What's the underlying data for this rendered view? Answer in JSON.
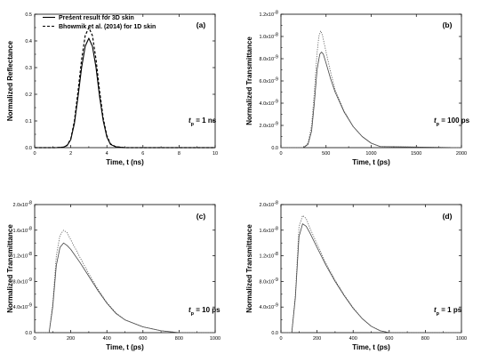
{
  "chart_data": [
    {
      "type": "line",
      "panel_label": "(a)",
      "ylabel": "Normalized Reflectance",
      "xlabel": "Time, t (ns)",
      "xlim": [
        0,
        10
      ],
      "ylim": [
        0,
        0.5
      ],
      "xticks": [
        0,
        2,
        4,
        6,
        8,
        10
      ],
      "xtick_labels": [
        "0",
        "2",
        "4",
        "6",
        "8",
        "10"
      ],
      "yticks": [
        0,
        0.1,
        0.2,
        0.3,
        0.4,
        0.5
      ],
      "ytick_labels": [
        "0.0",
        "0.1",
        "0.2",
        "0.3",
        "0.4",
        "0.5"
      ],
      "pulse_label_main": "t",
      "pulse_label_sub": "p",
      "pulse_label_rest": " = 1 ns",
      "legend": {
        "placement": "top-left",
        "entries": [
          "Present result for 3D skin",
          "Bhowmik et al. (2014)  for 1D skin"
        ]
      },
      "series": [
        {
          "name": "Present result for 3D skin",
          "style": "solid",
          "x": [
            0,
            1.2,
            1.6,
            1.8,
            2.0,
            2.2,
            2.4,
            2.6,
            2.8,
            3.0,
            3.2,
            3.4,
            3.6,
            3.8,
            4.0,
            4.2,
            4.5,
            5.0,
            10
          ],
          "y": [
            0,
            0,
            0.002,
            0.008,
            0.03,
            0.09,
            0.19,
            0.3,
            0.38,
            0.41,
            0.38,
            0.3,
            0.19,
            0.1,
            0.04,
            0.012,
            0.003,
            0,
            0
          ]
        },
        {
          "name": "Bhowmik et al. (2014)  for 1D skin",
          "style": "dashed",
          "x": [
            0,
            1.2,
            1.6,
            1.8,
            2.0,
            2.2,
            2.4,
            2.6,
            2.8,
            3.0,
            3.2,
            3.4,
            3.6,
            3.8,
            4.0,
            4.2,
            4.5,
            5.0,
            10
          ],
          "y": [
            0,
            0,
            0.002,
            0.009,
            0.033,
            0.1,
            0.21,
            0.33,
            0.42,
            0.45,
            0.42,
            0.33,
            0.21,
            0.11,
            0.045,
            0.014,
            0.003,
            0,
            0
          ]
        }
      ]
    },
    {
      "type": "line",
      "panel_label": "(b)",
      "ylabel": "Normalized Transmittance",
      "xlabel": "Time, t (ps)",
      "xlim": [
        0,
        2000
      ],
      "ylim": [
        0,
        1.2
      ],
      "xticks": [
        0,
        500,
        1000,
        1500,
        2000
      ],
      "xtick_labels": [
        "0",
        "500",
        "1000",
        "1500",
        "2000"
      ],
      "yticks": [
        0,
        0.2,
        0.4,
        0.6,
        0.8,
        1.0,
        1.2
      ],
      "ytick_labels": [
        "0.0",
        "2.0x10",
        "4.0x10",
        "6.0x10",
        "8.0x10",
        "1.0x10",
        "1.2x10"
      ],
      "ytick_exp": [
        "",
        "-9",
        "-9",
        "-9",
        "-9",
        "-8",
        "-8"
      ],
      "pulse_label_main": "t",
      "pulse_label_sub": "p",
      "pulse_label_rest": " = 100 ps",
      "series": [
        {
          "name": "",
          "style": "solid",
          "x": [
            0,
            250,
            300,
            340,
            370,
            400,
            430,
            450,
            470,
            500,
            550,
            600,
            700,
            800,
            900,
            1000,
            1100,
            2000
          ],
          "y": [
            0,
            0,
            0.03,
            0.15,
            0.4,
            0.7,
            0.84,
            0.86,
            0.84,
            0.76,
            0.62,
            0.5,
            0.32,
            0.19,
            0.1,
            0.04,
            0.01,
            0
          ]
        },
        {
          "name": "",
          "style": "dotted",
          "x": [
            0,
            250,
            300,
            340,
            370,
            400,
            420,
            440,
            460,
            500,
            550,
            600,
            700,
            800,
            900,
            1000,
            1100,
            2000
          ],
          "y": [
            0,
            0,
            0.04,
            0.2,
            0.5,
            0.85,
            1.0,
            1.05,
            1.01,
            0.86,
            0.68,
            0.52,
            0.33,
            0.19,
            0.1,
            0.04,
            0.01,
            0
          ]
        }
      ]
    },
    {
      "type": "line",
      "panel_label": "(c)",
      "ylabel": "Normalized Transmittance",
      "xlabel": "Time, t (ps)",
      "xlim": [
        0,
        1000
      ],
      "ylim": [
        0,
        2.0
      ],
      "xticks": [
        0,
        200,
        400,
        600,
        800,
        1000
      ],
      "xtick_labels": [
        "0",
        "200",
        "400",
        "600",
        "800",
        "1000"
      ],
      "yticks": [
        0,
        0.4,
        0.8,
        1.2,
        1.6,
        2.0
      ],
      "ytick_labels": [
        "0.0",
        "4.0x10",
        "8.0x10",
        "1.2x10",
        "1.6x10",
        "2.0x10"
      ],
      "ytick_exp": [
        "",
        "-9",
        "-9",
        "-8",
        "-8",
        "-8"
      ],
      "pulse_label_main": "t",
      "pulse_label_sub": "p",
      "pulse_label_rest": " = 10 ps",
      "series": [
        {
          "name": "",
          "style": "solid",
          "x": [
            0,
            80,
            100,
            120,
            140,
            160,
            180,
            200,
            250,
            300,
            350,
            400,
            450,
            500,
            600,
            700,
            800,
            1000
          ],
          "y": [
            0,
            0,
            0.4,
            1.05,
            1.33,
            1.4,
            1.36,
            1.3,
            1.1,
            0.88,
            0.66,
            0.46,
            0.3,
            0.2,
            0.09,
            0.03,
            0,
            0
          ]
        },
        {
          "name": "",
          "style": "dotted",
          "x": [
            0,
            80,
            100,
            120,
            140,
            160,
            180,
            200,
            250,
            300,
            350,
            400,
            450,
            500,
            600,
            700,
            800,
            1000
          ],
          "y": [
            0,
            0,
            0.45,
            1.2,
            1.52,
            1.6,
            1.56,
            1.45,
            1.18,
            0.92,
            0.68,
            0.47,
            0.31,
            0.2,
            0.09,
            0.03,
            0,
            0
          ]
        }
      ]
    },
    {
      "type": "line",
      "panel_label": "(d)",
      "ylabel": "Normalized Transmittance",
      "xlabel": "Time, t (ps)",
      "xlim": [
        0,
        1000
      ],
      "ylim": [
        0,
        2.0
      ],
      "xticks": [
        0,
        200,
        400,
        600,
        800,
        1000
      ],
      "xtick_labels": [
        "0",
        "200",
        "400",
        "600",
        "800",
        "1000"
      ],
      "yticks": [
        0,
        0.4,
        0.8,
        1.2,
        1.6,
        2.0
      ],
      "ytick_labels": [
        "0.0",
        "4.0x10",
        "8.0x10",
        "1.2x10",
        "1.6x10",
        "2.0x10"
      ],
      "ytick_exp": [
        "",
        "-9",
        "-9",
        "-8",
        "-8",
        "-8"
      ],
      "pulse_label_main": "t",
      "pulse_label_sub": "p",
      "pulse_label_rest": " = 1 ps",
      "series": [
        {
          "name": "",
          "style": "solid",
          "x": [
            0,
            60,
            80,
            100,
            120,
            140,
            160,
            200,
            250,
            300,
            350,
            400,
            450,
            500,
            550,
            600,
            1000
          ],
          "y": [
            0,
            0,
            0.55,
            1.5,
            1.7,
            1.66,
            1.56,
            1.33,
            1.05,
            0.8,
            0.58,
            0.38,
            0.22,
            0.1,
            0.03,
            0,
            0
          ]
        },
        {
          "name": "",
          "style": "dotted",
          "x": [
            0,
            60,
            80,
            100,
            120,
            140,
            160,
            200,
            250,
            300,
            350,
            400,
            450,
            500,
            550,
            600,
            1000
          ],
          "y": [
            0,
            0,
            0.6,
            1.65,
            1.83,
            1.78,
            1.64,
            1.38,
            1.08,
            0.82,
            0.59,
            0.39,
            0.22,
            0.1,
            0.03,
            0,
            0
          ]
        }
      ]
    }
  ]
}
